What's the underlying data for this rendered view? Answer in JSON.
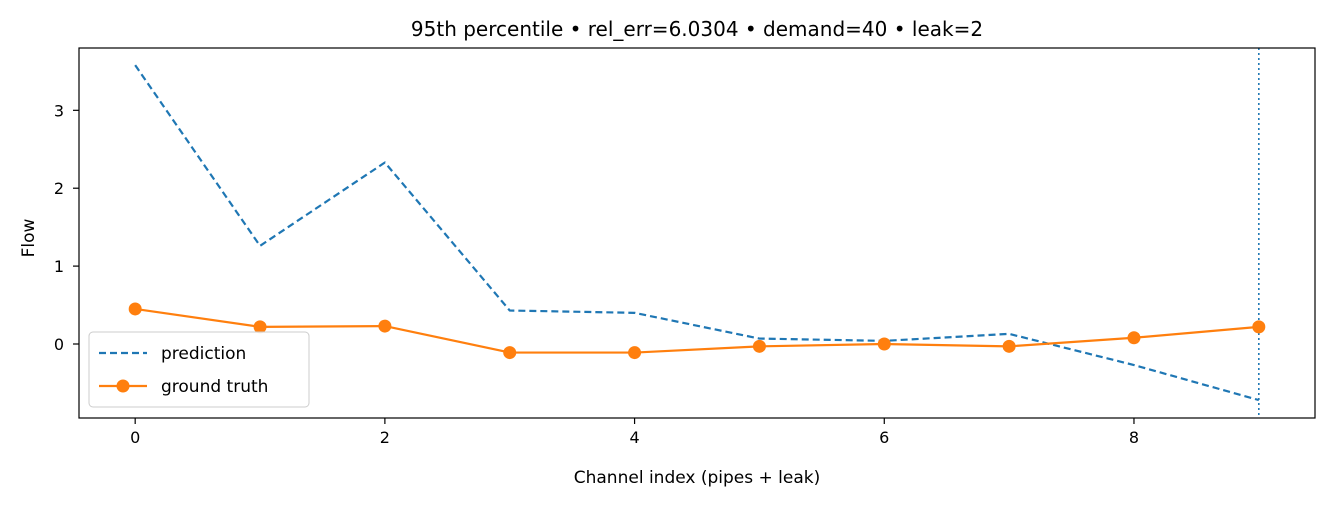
{
  "chart_data": {
    "type": "line",
    "title": "95th percentile • rel_err=6.0304 • demand=40 • leak=2",
    "xlabel": "Channel index (pipes + leak)",
    "ylabel": "Flow",
    "xlim": [
      -0.45,
      9.45
    ],
    "ylim": [
      -0.95,
      3.8
    ],
    "xticks": [
      0,
      2,
      4,
      6,
      8
    ],
    "yticks": [
      0,
      1,
      2,
      3
    ],
    "x": [
      0,
      1,
      2,
      3,
      4,
      5,
      6,
      7,
      8,
      9
    ],
    "series": [
      {
        "name": "prediction",
        "style": "dashed",
        "color": "#1f77b4",
        "values": [
          3.58,
          1.26,
          2.33,
          0.43,
          0.4,
          0.07,
          0.04,
          0.13,
          -0.27,
          -0.72
        ]
      },
      {
        "name": "ground truth",
        "style": "solid-marker",
        "color": "#ff7f0e",
        "values": [
          0.45,
          0.22,
          0.23,
          -0.11,
          -0.11,
          -0.03,
          0.0,
          -0.03,
          0.08,
          0.22
        ]
      }
    ],
    "vline": {
      "x": 9,
      "style": "dotted",
      "color": "#1f77b4"
    },
    "grid": false,
    "legend": "lower-left"
  }
}
